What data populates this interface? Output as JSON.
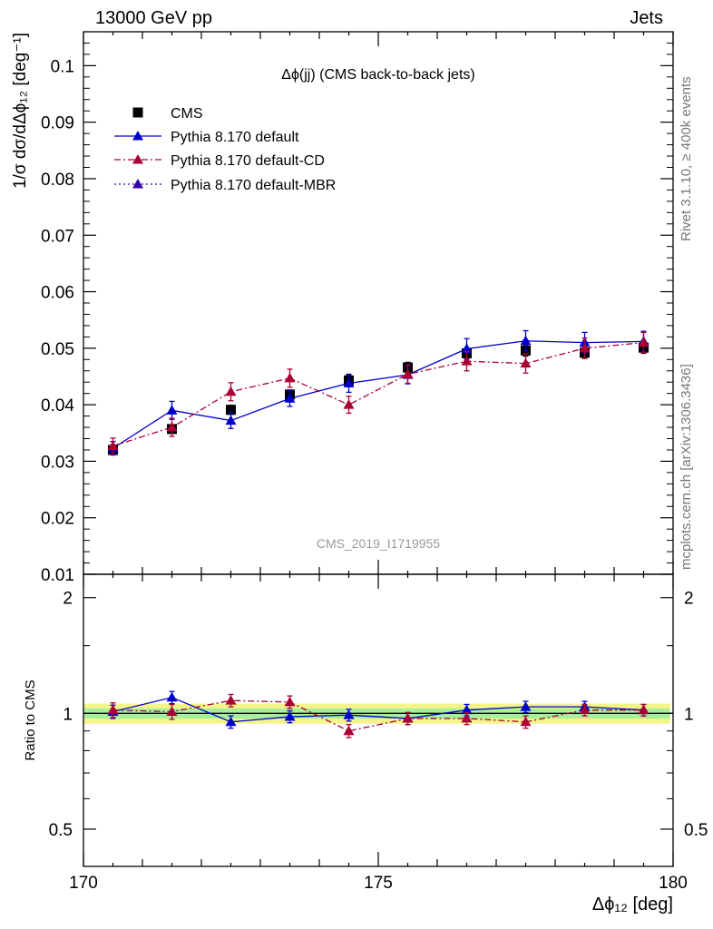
{
  "header": {
    "left": "13000 GeV pp",
    "right": "Jets"
  },
  "side_labels": {
    "top": "Rivet 3.1.10, ≥ 400k events",
    "bottom": "mcplots.cern.ch [arXiv:1306.3436]"
  },
  "chart_data": [
    {
      "type": "scatter",
      "title": "Δϕ(jj) (CMS back-to-back jets)",
      "watermark": "CMS_2019_I1719955",
      "ylabel": "1/σ dσ/dΔϕ₁₂ [deg⁻¹]",
      "ylim": [
        0.01,
        0.106
      ],
      "yticks": [
        "0.01",
        "0.02",
        "0.03",
        "0.04",
        "0.05",
        "0.06",
        "0.07",
        "0.08",
        "0.09",
        "0.1"
      ],
      "legend_placement": "top-left",
      "x": [
        170.5,
        171.5,
        172.5,
        173.5,
        174.5,
        175.5,
        176.5,
        177.5,
        178.5,
        179.5
      ],
      "series": [
        {
          "name": "CMS",
          "marker": "square",
          "line": "none",
          "color": "#000000",
          "values": [
            0.032,
            0.0357,
            0.0391,
            0.0418,
            0.0443,
            0.0466,
            0.0491,
            0.0496,
            0.0492,
            0.0501
          ],
          "errors": [
            0.0007,
            0.0007,
            0.0008,
            0.0008,
            0.0009,
            0.0009,
            0.0009,
            0.001,
            0.001,
            0.001
          ]
        },
        {
          "name": "Pythia 8.170 default",
          "marker": "triangle",
          "line": "solid",
          "color": "#0000cc",
          "values": [
            0.0323,
            0.039,
            0.0372,
            0.0411,
            0.0438,
            0.0453,
            0.0499,
            0.0513,
            0.051,
            0.0512
          ],
          "errors": [
            0.0012,
            0.0016,
            0.0014,
            0.0014,
            0.0016,
            0.0016,
            0.0018,
            0.0018,
            0.0018,
            0.0018
          ]
        },
        {
          "name": "Pythia 8.170 default-CD",
          "marker": "triangle",
          "line": "dashdot",
          "color": "#aa0033",
          "values": [
            0.0327,
            0.036,
            0.0423,
            0.0447,
            0.04,
            0.0454,
            0.0477,
            0.0473,
            0.05,
            0.051
          ],
          "errors": [
            0.0014,
            0.0016,
            0.0016,
            0.0016,
            0.0015,
            0.0016,
            0.0017,
            0.0017,
            0.0018,
            0.0018
          ]
        },
        {
          "name": "Pythia 8.170 default-MBR",
          "marker": "triangle",
          "line": "dotted",
          "color": "#3300aa",
          "values": [],
          "errors": []
        }
      ]
    },
    {
      "type": "scatter",
      "xlabel": "Δϕ₁₂ [deg]",
      "ylabel": "Ratio to CMS",
      "xlim": [
        170,
        180
      ],
      "xticks": [
        "170",
        "175",
        "180"
      ],
      "ylim": [
        0.4,
        2.3
      ],
      "yscale": "log",
      "yticks": [
        "0.5",
        "1",
        "2"
      ],
      "band": {
        "inner": [
          0.97,
          1.03
        ],
        "outer": [
          0.94,
          1.06
        ]
      },
      "x": [
        170.5,
        171.5,
        172.5,
        173.5,
        174.5,
        175.5,
        176.5,
        177.5,
        178.5,
        179.5
      ],
      "series": [
        {
          "name": "Pythia 8.170 default",
          "color": "#0000cc",
          "line": "solid",
          "values": [
            1.01,
            1.1,
            0.95,
            0.98,
            0.99,
            0.97,
            1.02,
            1.04,
            1.04,
            1.02
          ],
          "errors": [
            0.04,
            0.04,
            0.035,
            0.035,
            0.035,
            0.035,
            0.035,
            0.035,
            0.035,
            0.035
          ]
        },
        {
          "name": "Pythia 8.170 default-CD",
          "color": "#aa0033",
          "line": "dashdot",
          "values": [
            1.02,
            1.01,
            1.08,
            1.07,
            0.9,
            0.97,
            0.97,
            0.95,
            1.02,
            1.02
          ],
          "errors": [
            0.045,
            0.045,
            0.04,
            0.04,
            0.035,
            0.035,
            0.035,
            0.035,
            0.035,
            0.035
          ]
        }
      ]
    }
  ]
}
